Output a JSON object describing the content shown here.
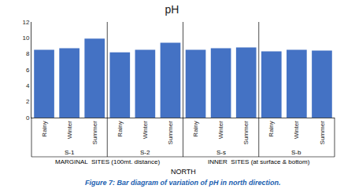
{
  "chart_data": {
    "type": "bar",
    "title": "pH",
    "categories": [
      "Rainy",
      "Winter",
      "Summer",
      "Rainy",
      "Winter",
      "Summer",
      "Rainy",
      "Winter",
      "Summer",
      "Rainy",
      "Winter",
      "Summer"
    ],
    "values": [
      8.5,
      8.7,
      9.9,
      8.2,
      8.5,
      9.4,
      8.5,
      8.7,
      8.8,
      8.3,
      8.5,
      8.4
    ],
    "color": "#4472C4",
    "ylim": [
      0,
      12
    ],
    "yticks": [
      0,
      2,
      4,
      6,
      8,
      10,
      12
    ],
    "grid": false,
    "xlabel": "NORTH",
    "site_labels": [
      "S-1",
      "S-2",
      "S-s",
      "S-b"
    ],
    "group_labels": [
      "MARGINAL  SITES (100mt. distance)",
      "INNER  SITES (at surface & bottom)"
    ],
    "caption": "Figure 7: Bar diagram of variation of pH in north direction."
  }
}
